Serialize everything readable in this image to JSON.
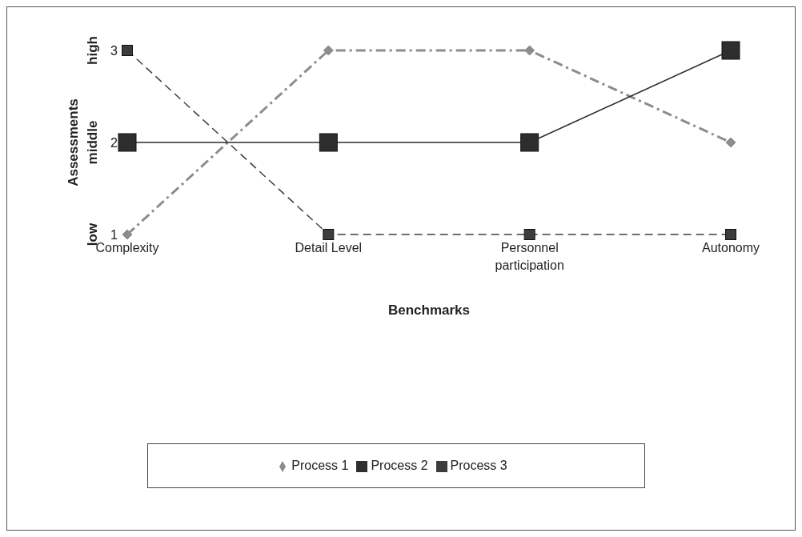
{
  "chart_data": {
    "type": "line",
    "xlabel": "Benchmarks",
    "ylabel": "Assessments",
    "categories": [
      "Complexity",
      "Detail Level",
      "Personnel participation",
      "Autonomy"
    ],
    "ylim": [
      1,
      3
    ],
    "yticks": [
      1,
      2,
      3
    ],
    "grid": false,
    "legend": "bottom",
    "annotations": [
      "low",
      "middle",
      "high"
    ],
    "series": [
      {
        "name": "Process 1",
        "color": "#8c8c8c",
        "values": [
          1,
          3,
          3,
          2
        ],
        "marker": "diamond",
        "line_style": "dashdot"
      },
      {
        "name": "Process 2",
        "color": "#2e2e2e",
        "values": [
          2,
          2,
          2,
          3
        ],
        "marker": "square",
        "line_style": "solid"
      },
      {
        "name": "Process 3",
        "color": "#3c3c3c",
        "values": [
          3,
          1,
          1,
          1
        ],
        "marker": "square",
        "line_style": "dashed"
      }
    ]
  }
}
